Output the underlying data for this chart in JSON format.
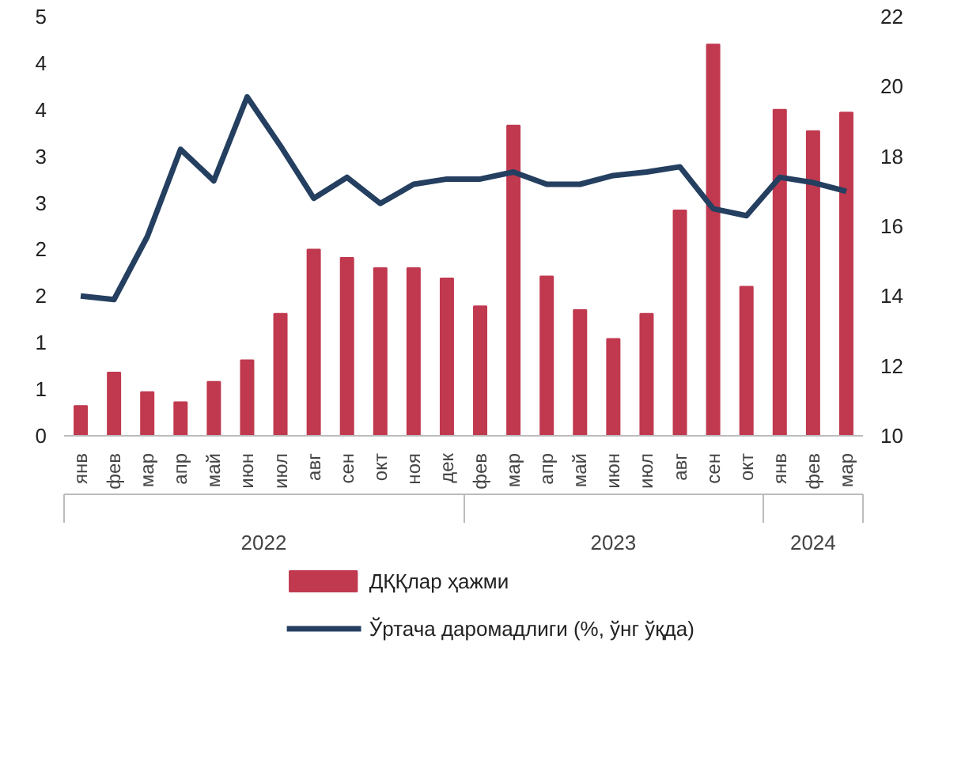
{
  "chart_data": {
    "type": "bar",
    "categories": [
      "янв",
      "фев",
      "мар",
      "апр",
      "май",
      "июн",
      "июл",
      "авг",
      "сен",
      "окт",
      "ноя",
      "дек",
      "фев",
      "мар",
      "апр",
      "май",
      "июн",
      "июл",
      "авг",
      "сен",
      "окт",
      "янв",
      "фев",
      "мар"
    ],
    "series": [
      {
        "name": "ДҚҚлар ҳажми",
        "color": "#c0394f",
        "values": [
          0.32,
          0.68,
          0.47,
          0.36,
          0.58,
          0.81,
          1.31,
          2.0,
          1.91,
          1.8,
          1.8,
          1.69,
          1.39,
          3.33,
          1.71,
          1.35,
          1.04,
          1.31,
          2.42,
          4.2,
          1.6,
          3.5,
          3.27,
          3.47
        ]
      },
      {
        "name": "Ўртача даромадлиги (%, ўнг ўқда)",
        "type": "line",
        "axis": "y2",
        "color": "#243f60",
        "values": [
          14.0,
          13.9,
          15.7,
          18.2,
          17.3,
          19.7,
          18.3,
          16.8,
          17.4,
          16.65,
          17.2,
          17.35,
          17.35,
          17.55,
          17.2,
          17.2,
          17.45,
          17.55,
          17.7,
          16.5,
          16.3,
          17.4,
          17.25,
          17.0
        ]
      }
    ],
    "annotations": [
      "2022",
      "2023",
      "2024"
    ],
    "ylim": [
      0,
      4.5
    ],
    "yticks": [
      0,
      {
        "value": 0.5,
        "label": "1"
      },
      1,
      {
        "value": 1.5,
        "label": "2"
      },
      2,
      {
        "value": 2.5,
        "label": "3"
      },
      3,
      {
        "value": 3.5,
        "label": "4"
      },
      4,
      {
        "value": 4.5,
        "label": "5"
      }
    ],
    "y2lim": [
      10,
      22
    ],
    "y2ticks": [
      10,
      12,
      14,
      16,
      18,
      20,
      22
    ],
    "grid": false,
    "legend": "bottom",
    "line_style": "solid",
    "marker": "none"
  }
}
